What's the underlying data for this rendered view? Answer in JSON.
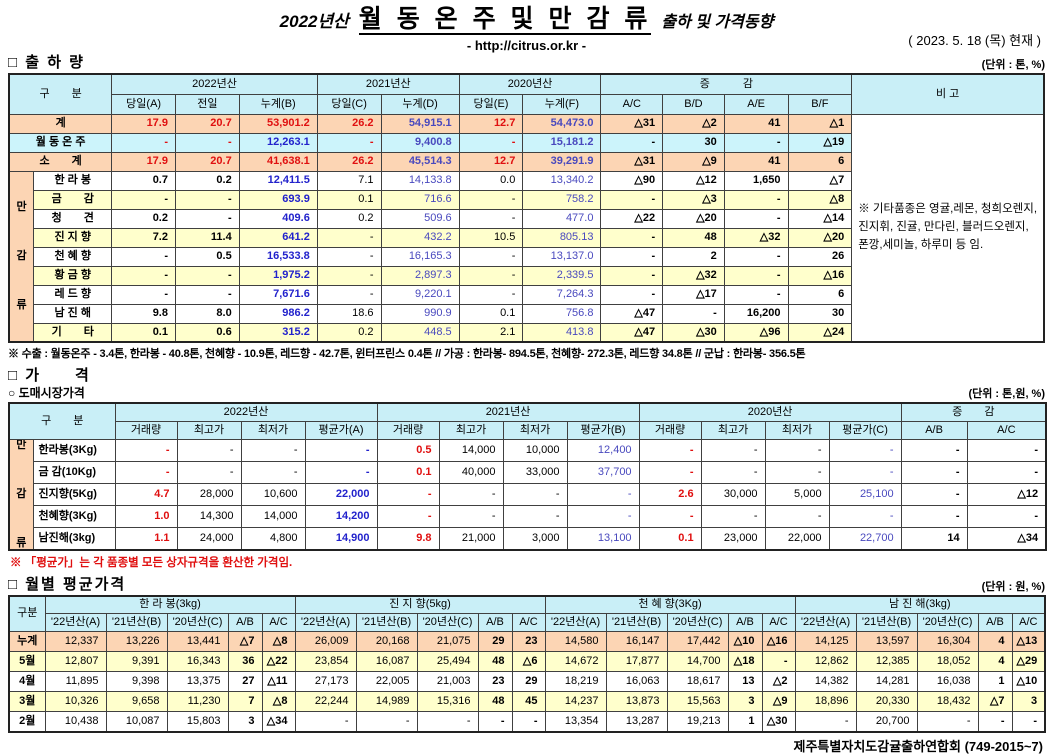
{
  "header": {
    "season": "2022년산",
    "title_main": "월 동 온 주 및 만 감 류",
    "title_sub": "출하 및 가격동향",
    "url": "- http://citrus.or.kr -",
    "date": "( 2023.  5.  18 (목) 현재 )"
  },
  "shipment": {
    "section_title": "□ 출 하 량",
    "unit": "(단위 : 톤, %)",
    "corner": "구　　분",
    "remark_header": "비 고",
    "groups": [
      {
        "label": "2022년산"
      },
      {
        "label": "2021년산"
      },
      {
        "label": "2020년산"
      },
      {
        "label": "증　　　감"
      }
    ],
    "sub_headers": [
      "당일(A)",
      "전일",
      "누계(B)",
      "당일(C)",
      "누계(D)",
      "당일(E)",
      "누계(F)",
      "A/C",
      "B/D",
      "A/E",
      "B/F"
    ],
    "group_label": "만감류",
    "rows": [
      {
        "label": "계",
        "type": "total",
        "values": [
          "17.9",
          "20.7",
          "53,901.2",
          "26.2",
          "54,915.1",
          "12.7",
          "54,473.0",
          "△31",
          "△2",
          "41",
          "△1"
        ]
      },
      {
        "label": "월 동 온 주",
        "type": "cyan",
        "values": [
          "-",
          "-",
          "12,263.1",
          "-",
          "9,400.8",
          "-",
          "15,181.2",
          "-",
          "30",
          "-",
          "△19"
        ]
      },
      {
        "label": "소　　계",
        "type": "total",
        "values": [
          "17.9",
          "20.7",
          "41,638.1",
          "26.2",
          "45,514.3",
          "12.7",
          "39,291.9",
          "△31",
          "△9",
          "41",
          "6"
        ]
      },
      {
        "label": "한 라 봉",
        "type": "item",
        "bg": "w",
        "values": [
          "0.7",
          "0.2",
          "12,411.5",
          "7.1",
          "14,133.8",
          "0.0",
          "13,340.2",
          "△90",
          "△12",
          "1,650",
          "△7"
        ]
      },
      {
        "label": "금　　감",
        "type": "item",
        "bg": "y",
        "values": [
          "-",
          "-",
          "693.9",
          "0.1",
          "716.6",
          "-",
          "758.2",
          "-",
          "△3",
          "-",
          "△8"
        ]
      },
      {
        "label": "청　　견",
        "type": "item",
        "bg": "w",
        "values": [
          "0.2",
          "-",
          "409.6",
          "0.2",
          "509.6",
          "-",
          "477.0",
          "△22",
          "△20",
          "-",
          "△14"
        ]
      },
      {
        "label": "진 지 향",
        "type": "item",
        "bg": "y",
        "values": [
          "7.2",
          "11.4",
          "641.2",
          "-",
          "432.2",
          "10.5",
          "805.13",
          "-",
          "48",
          "△32",
          "△20"
        ]
      },
      {
        "label": "천 혜 향",
        "type": "item",
        "bg": "w",
        "values": [
          "-",
          "0.5",
          "16,533.8",
          "-",
          "16,165.3",
          "-",
          "13,137.0",
          "-",
          "2",
          "-",
          "26"
        ]
      },
      {
        "label": "황 금 향",
        "type": "item",
        "bg": "y",
        "values": [
          "-",
          "-",
          "1,975.2",
          "-",
          "2,897.3",
          "-",
          "2,339.5",
          "-",
          "△32",
          "-",
          "△16"
        ]
      },
      {
        "label": "레 드 향",
        "type": "item",
        "bg": "w",
        "values": [
          "-",
          "-",
          "7,671.6",
          "-",
          "9,220.1",
          "-",
          "7,264.3",
          "-",
          "△17",
          "-",
          "6"
        ]
      },
      {
        "label": "남 진 해",
        "type": "item",
        "bg": "w",
        "values": [
          "9.8",
          "8.0",
          "986.2",
          "18.6",
          "990.9",
          "0.1",
          "756.8",
          "△47",
          "-",
          "16,200",
          "30"
        ]
      },
      {
        "label": "기　　타",
        "type": "item",
        "bg": "y",
        "values": [
          "0.1",
          "0.6",
          "315.2",
          "0.2",
          "448.5",
          "2.1",
          "413.8",
          "△47",
          "△30",
          "△96",
          "△24"
        ]
      }
    ],
    "note_cell": "※ 기타품종은 영귤,레몬, 청희오렌지, 진지휘, 진귤, 만다린, 블러드오렌지, 폰깡,세미놀, 하루미 등 임.",
    "footnote": "※ 수출 : 월동온주 - 3.4톤, 한라봉 - 40.8톤, 천혜향 - 10.9톤, 레드향 - 42.7톤, 윈터프린스 0.4톤 //  가공  :  한라봉- 894.5톤, 천혜향- 272.3톤, 레드향 34.8톤  //  군납 : 한라봉- 356.5톤"
  },
  "price": {
    "section_title": "□ 가　　격",
    "sub_section": "○ 도매시장가격",
    "unit": "(단위 : 톤,원, %)",
    "corner": "구　　분",
    "groups": [
      {
        "label": "2022년산"
      },
      {
        "label": "2021년산"
      },
      {
        "label": "2020년산"
      },
      {
        "label": "증　　감"
      }
    ],
    "sub_headers": [
      "거래량",
      "최고가",
      "최저가",
      "평균가(A)",
      "거래량",
      "최고가",
      "최저가",
      "평균가(B)",
      "거래량",
      "최고가",
      "최저가",
      "평균가(C)",
      "A/B",
      "A/C"
    ],
    "group_label": "만감류",
    "rows": [
      {
        "label": "한라봉(3Kg)",
        "values": [
          "-",
          "-",
          "-",
          "-",
          "0.5",
          "14,000",
          "10,000",
          "12,400",
          "-",
          "-",
          "-",
          "-",
          "-",
          "-"
        ]
      },
      {
        "label": "금 감(10Kg)",
        "values": [
          "-",
          "-",
          "-",
          "-",
          "0.1",
          "40,000",
          "33,000",
          "37,700",
          "-",
          "-",
          "-",
          "-",
          "-",
          "-"
        ]
      },
      {
        "label": "진지향(5Kg)",
        "values": [
          "4.7",
          "28,000",
          "10,600",
          "22,000",
          "-",
          "-",
          "-",
          "-",
          "2.6",
          "30,000",
          "5,000",
          "25,100",
          "-",
          "△12"
        ]
      },
      {
        "label": "천혜향(3Kg)",
        "values": [
          "1.0",
          "14,300",
          "14,000",
          "14,200",
          "-",
          "-",
          "-",
          "-",
          "-",
          "-",
          "-",
          "-",
          "-",
          "-"
        ]
      },
      {
        "label": "남진해(3kg)",
        "values": [
          "1.1",
          "24,000",
          "4,800",
          "14,900",
          "9.8",
          "21,000",
          "3,000",
          "13,100",
          "0.1",
          "23,000",
          "22,000",
          "22,700",
          "14",
          "△34"
        ]
      }
    ],
    "note": "※  「평균가」는 각 품종별 모든 상자규격을 환산한 가격임."
  },
  "monthly": {
    "section_title": "□ 월별 평균가격",
    "unit": "(단위 : 원, %)",
    "corner": "구분",
    "sub_headers": [
      "'22년산(A)",
      "'21년산(B)",
      "'20년산(C)",
      "A/B",
      "A/C"
    ],
    "row_labels": [
      "누계",
      "5월",
      "4월",
      "3월",
      "2월"
    ],
    "groups": [
      {
        "name": "한 라 봉(3kg)",
        "rows": [
          [
            "12,337",
            "13,226",
            "13,441",
            "△7",
            "△8"
          ],
          [
            "12,807",
            "9,391",
            "16,343",
            "36",
            "△22"
          ],
          [
            "11,895",
            "9,398",
            "13,375",
            "27",
            "△11"
          ],
          [
            "10,326",
            "9,658",
            "11,230",
            "7",
            "△8"
          ],
          [
            "10,438",
            "10,087",
            "15,803",
            "3",
            "△34"
          ]
        ]
      },
      {
        "name": "진 지 향(5kg)",
        "rows": [
          [
            "26,009",
            "20,168",
            "21,075",
            "29",
            "23"
          ],
          [
            "23,854",
            "16,087",
            "25,494",
            "48",
            "△6"
          ],
          [
            "27,173",
            "22,005",
            "21,003",
            "23",
            "29"
          ],
          [
            "22,244",
            "14,989",
            "15,316",
            "48",
            "45"
          ],
          [
            "-",
            "-",
            "-",
            "-",
            "-"
          ]
        ]
      },
      {
        "name": "천 혜 향(3Kg)",
        "rows": [
          [
            "14,580",
            "16,147",
            "17,442",
            "△10",
            "△16"
          ],
          [
            "14,672",
            "17,877",
            "14,700",
            "△18",
            "-"
          ],
          [
            "18,219",
            "16,063",
            "18,617",
            "13",
            "△2"
          ],
          [
            "14,237",
            "13,873",
            "15,563",
            "3",
            "△9"
          ],
          [
            "13,354",
            "13,287",
            "19,213",
            "1",
            "△30"
          ]
        ]
      },
      {
        "name": "남 진 해(3kg)",
        "rows": [
          [
            "14,125",
            "13,597",
            "16,304",
            "4",
            "△13"
          ],
          [
            "12,862",
            "12,385",
            "18,052",
            "4",
            "△29"
          ],
          [
            "14,382",
            "14,281",
            "16,038",
            "1",
            "△10"
          ],
          [
            "18,896",
            "20,330",
            "18,432",
            "△7",
            "3"
          ],
          [
            "-",
            "20,700",
            "-",
            "-",
            "-"
          ]
        ]
      }
    ]
  },
  "footer": "제주특별자치도감귤출하연합회 (749-2015~7)",
  "colors": {
    "header_bg": "#C9EFF7",
    "total_row_bg": "#FCD5B4",
    "zebra_bg": "#FFFFCC",
    "cyan_row_bg": "#CCF4FB",
    "red_value": "#E01010",
    "blue_value": "#2222CC"
  }
}
